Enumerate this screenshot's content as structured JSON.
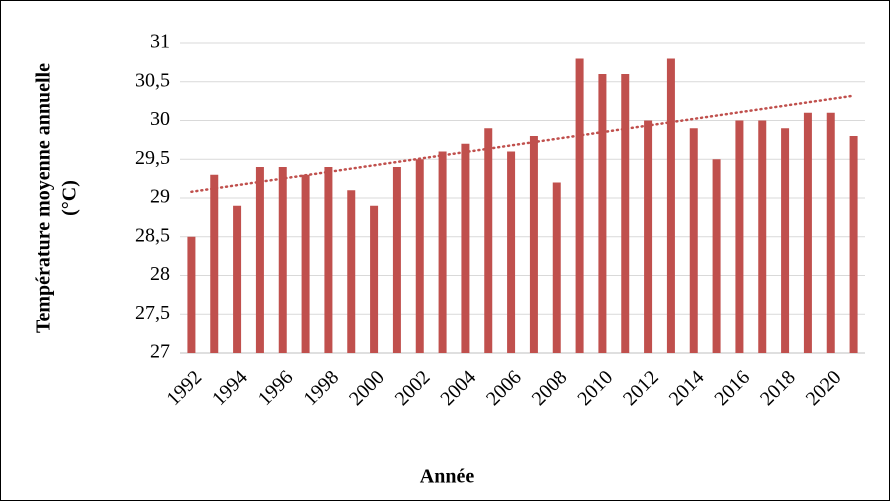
{
  "chart_data": {
    "type": "bar",
    "x_label": "Année",
    "y_label": [
      "Température moyenne annuelle",
      "(°C)"
    ],
    "categories": [
      "1992",
      null,
      "1994",
      null,
      "1996",
      null,
      "1998",
      null,
      "2000",
      null,
      "2002",
      null,
      "2004",
      null,
      "2006",
      null,
      "2008",
      null,
      "2010",
      null,
      "2012",
      null,
      "2014",
      null,
      "2016",
      null,
      "2018",
      null,
      "2020",
      null
    ],
    "values": [
      28.5,
      29.3,
      28.9,
      29.4,
      29.4,
      29.3,
      29.4,
      29.1,
      28.9,
      29.4,
      29.5,
      29.6,
      29.7,
      29.9,
      29.6,
      29.8,
      29.2,
      30.8,
      30.6,
      30.6,
      30.0,
      30.8,
      29.9,
      29.5,
      30.0,
      30.0,
      29.9,
      30.1,
      30.1,
      29.8
    ],
    "color": "#c0504d",
    "trendline": {
      "type": "linear",
      "color": "#c0504d"
    },
    "ylim": [
      27,
      31
    ],
    "yticks": [
      27,
      {
        "value": 27.5,
        "label": "27,5"
      },
      28,
      {
        "value": 28.5,
        "label": "28,5"
      },
      29,
      {
        "value": 29.5,
        "label": "29,5"
      },
      30,
      {
        "value": 30.5,
        "label": "30,5"
      },
      31
    ],
    "grid": true
  }
}
